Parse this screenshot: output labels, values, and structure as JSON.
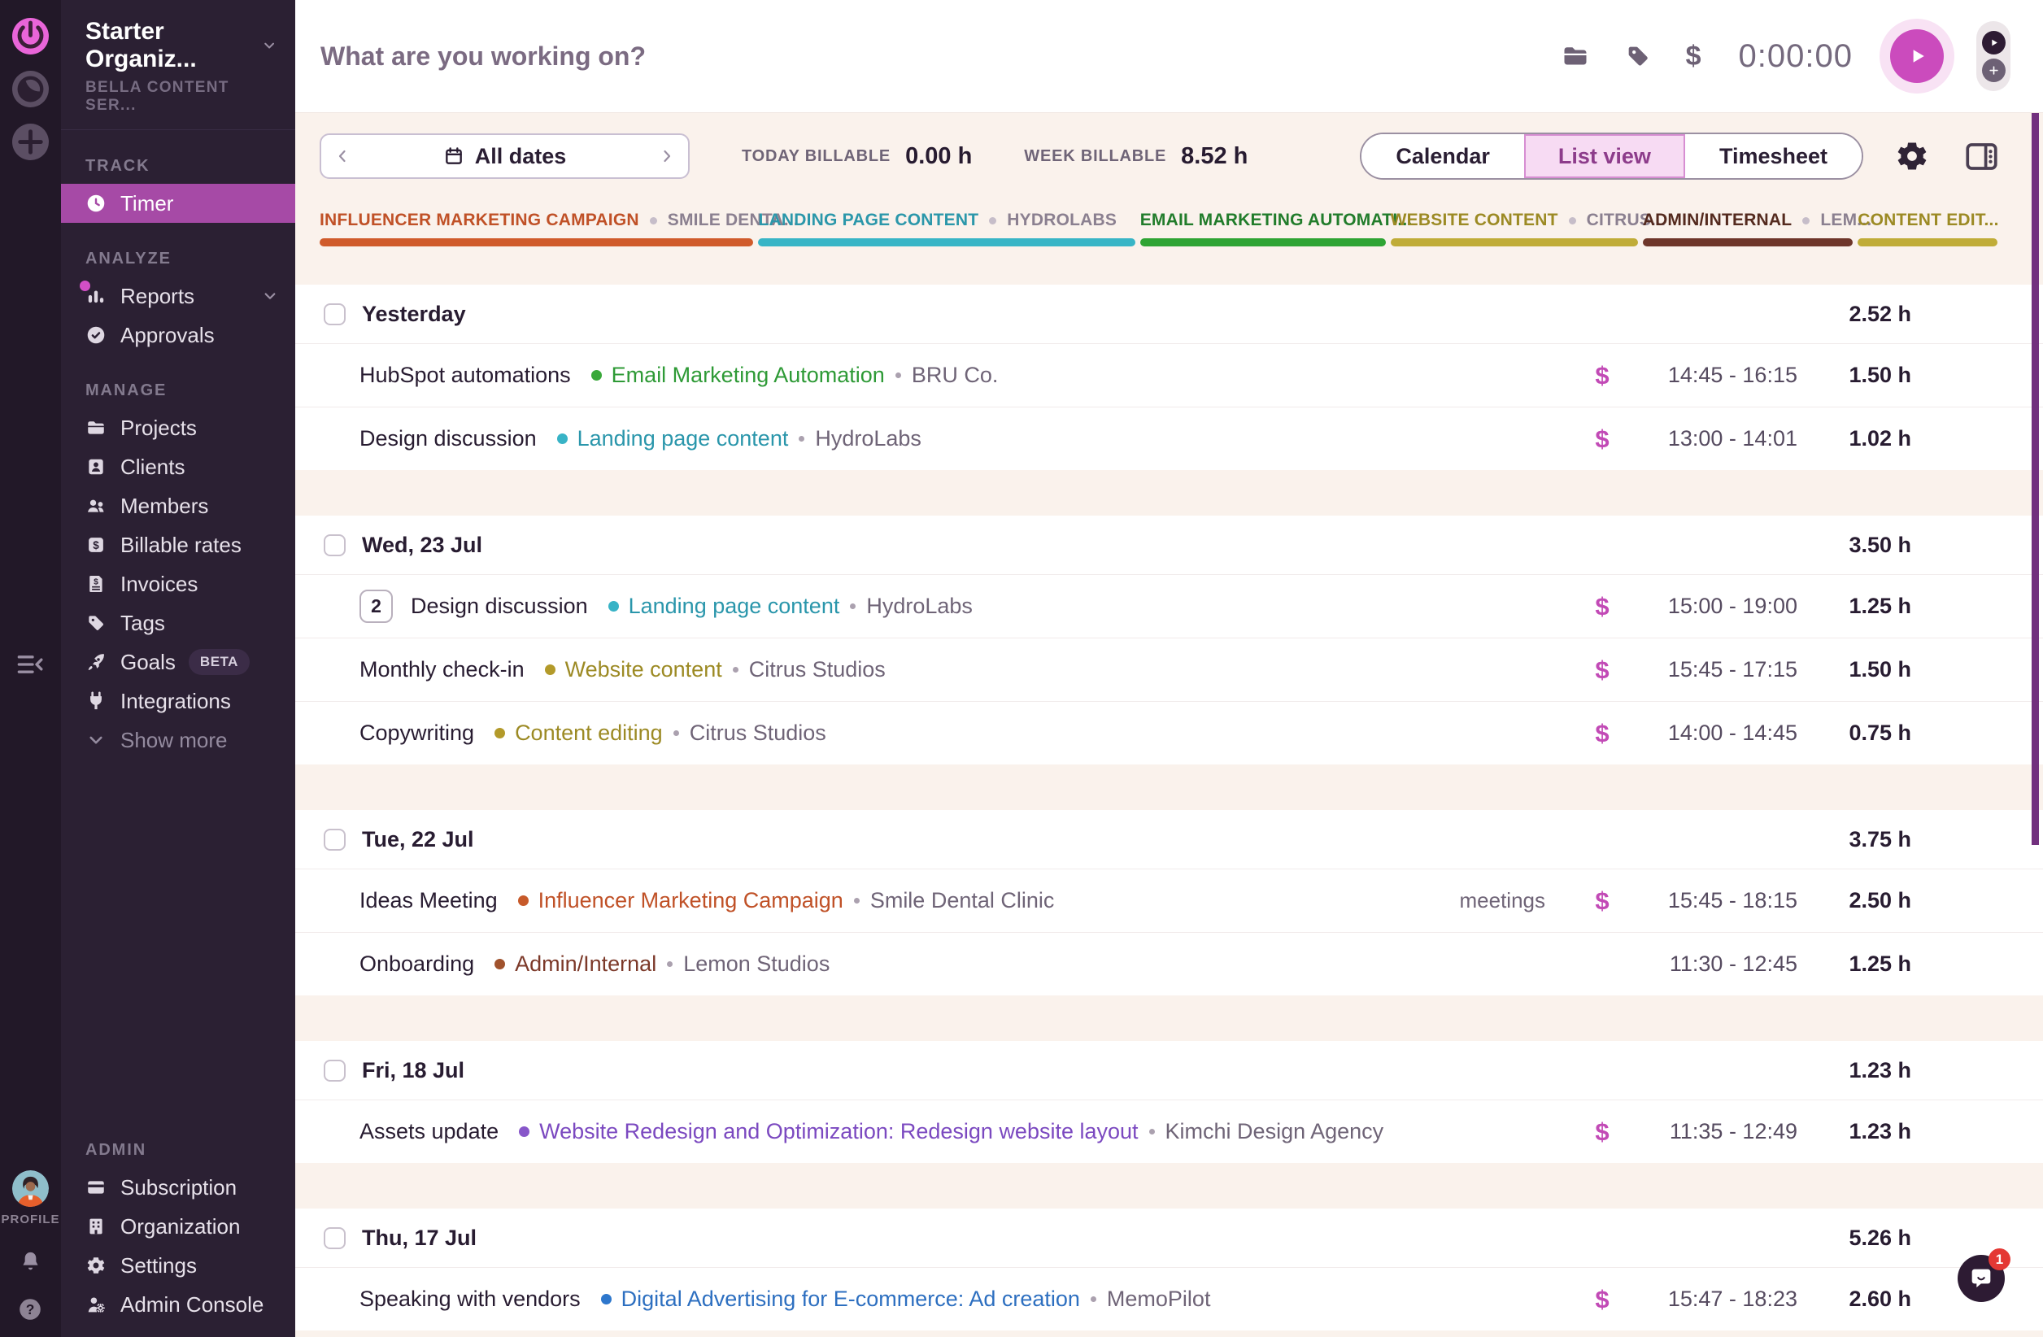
{
  "rail": {
    "profile_label": "PROFILE",
    "icons": {
      "logo": "power",
      "workspace_switcher": "crescent-clock",
      "add_workspace": "plus",
      "collapse_sidebar": "hamburger-left-chevron",
      "notifications": "bell",
      "help": "question-mark"
    }
  },
  "sidebar": {
    "org_name": "Starter Organiz...",
    "org_subtitle": "BELLA CONTENT SER...",
    "sections": [
      {
        "label": "TRACK",
        "items": [
          {
            "label": "Timer",
            "icon": "timer",
            "active": true
          }
        ]
      },
      {
        "label": "ANALYZE",
        "items": [
          {
            "label": "Reports",
            "icon": "reports",
            "chevron": true,
            "notification": true
          },
          {
            "label": "Approvals",
            "icon": "approvals"
          }
        ]
      },
      {
        "label": "MANAGE",
        "items": [
          {
            "label": "Projects",
            "icon": "projects"
          },
          {
            "label": "Clients",
            "icon": "clients"
          },
          {
            "label": "Members",
            "icon": "members"
          },
          {
            "label": "Billable rates",
            "icon": "billable"
          },
          {
            "label": "Invoices",
            "icon": "invoices"
          },
          {
            "label": "Tags",
            "icon": "tags"
          },
          {
            "label": "Goals",
            "icon": "goals",
            "badge": "BETA"
          },
          {
            "label": "Integrations",
            "icon": "integrations"
          },
          {
            "label": "Show more",
            "icon": "chevron-down",
            "muted": true
          }
        ]
      },
      {
        "label": "ADMIN",
        "items": [
          {
            "label": "Subscription",
            "icon": "subscription"
          },
          {
            "label": "Organization",
            "icon": "organization"
          },
          {
            "label": "Settings",
            "icon": "settings"
          },
          {
            "label": "Admin Console",
            "icon": "admin-console"
          }
        ]
      }
    ]
  },
  "topbar": {
    "placeholder": "What are you working on?",
    "timer_value": "0:00:00"
  },
  "toolbar": {
    "date_range": "All dates",
    "today_label": "TODAY BILLABLE",
    "today_value": "0.00 h",
    "week_label": "WEEK BILLABLE",
    "week_value": "8.52 h",
    "views": [
      {
        "label": "Calendar",
        "active": false
      },
      {
        "label": "List view",
        "active": true
      },
      {
        "label": "Timesheet",
        "active": false
      }
    ]
  },
  "project_bar": {
    "segments": [
      {
        "project": "INFLUENCER MARKETING CAMPAIGN",
        "client": "SMILE DENTA...",
        "color": "#c05127",
        "bar": "#d05b2b",
        "width": 26.1
      },
      {
        "project": "LANDING PAGE CONTENT",
        "client": "HYDROLABS",
        "color": "#2b97aa",
        "bar": "#38b5c6",
        "width": 22.7
      },
      {
        "project": "EMAIL MARKETING AUTOMATI...",
        "client": "",
        "color": "#217c2b",
        "bar": "#2fa434",
        "width": 14.9
      },
      {
        "project": "WEBSITE CONTENT",
        "client": "CITRUS...",
        "color": "#9c8a24",
        "bar": "#c0ac38",
        "width": 15.0
      },
      {
        "project": "ADMIN/INTERNAL",
        "client": "LEM...",
        "color": "#542a1e",
        "bar": "#6e362a",
        "width": 12.8
      },
      {
        "project": "CONTENT EDIT...",
        "client": "",
        "color": "#9c8a24",
        "bar": "#c0ac38",
        "width": 8.3
      }
    ]
  },
  "groups": [
    {
      "title": "Yesterday",
      "total": "2.52 h",
      "entries": [
        {
          "description": "HubSpot automations",
          "project": "Email Marketing Automation",
          "project_color": "#2e9a36",
          "dot": "#39a83a",
          "client": "BRU Co.",
          "billable": true,
          "time": "14:45 - 16:15",
          "duration": "1.50 h"
        },
        {
          "description": "Design discussion",
          "project": "Landing page content",
          "project_color": "#2a96ab",
          "dot": "#38b3c6",
          "client": "HydroLabs",
          "billable": true,
          "time": "13:00 - 14:01",
          "duration": "1.02 h"
        }
      ]
    },
    {
      "title": "Wed, 23 Jul",
      "total": "3.50 h",
      "entries": [
        {
          "count": "2",
          "description": "Design discussion",
          "project": "Landing page content",
          "project_color": "#2a96ab",
          "dot": "#38b3c6",
          "client": "HydroLabs",
          "billable": true,
          "time": "15:00 - 19:00",
          "duration": "1.25 h"
        },
        {
          "description": "Monthly check-in",
          "project": "Website content",
          "project_color": "#9c8a24",
          "dot": "#b39a2a",
          "client": "Citrus Studios",
          "billable": true,
          "time": "15:45 - 17:15",
          "duration": "1.50 h"
        },
        {
          "description": "Copywriting",
          "project": "Content editing",
          "project_color": "#9c8a24",
          "dot": "#b39a2a",
          "client": "Citrus Studios",
          "billable": true,
          "time": "14:00 - 14:45",
          "duration": "0.75 h"
        }
      ]
    },
    {
      "title": "Tue, 22 Jul",
      "total": "3.75 h",
      "entries": [
        {
          "description": "Ideas Meeting",
          "project": "Influencer Marketing Campaign",
          "project_color": "#c05127",
          "dot": "#c75a2a",
          "client": "Smile Dental Clinic",
          "tags": "meetings",
          "billable": true,
          "time": "15:45 - 18:15",
          "duration": "2.50 h"
        },
        {
          "description": "Onboarding",
          "project": "Admin/Internal",
          "project_color": "#7c3929",
          "dot": "#a0522d",
          "client": "Lemon Studios",
          "billable": false,
          "time": "11:30 - 12:45",
          "duration": "1.25 h"
        }
      ]
    },
    {
      "title": "Fri, 18 Jul",
      "total": "1.23 h",
      "entries": [
        {
          "description": "Assets update",
          "project": "Website Redesign and Optimization: Redesign website layout",
          "project_color": "#7b49c0",
          "dot": "#8756c9",
          "client": "Kimchi Design Agency",
          "billable": true,
          "time": "11:35 - 12:49",
          "duration": "1.23 h"
        }
      ]
    },
    {
      "title": "Thu, 17 Jul",
      "total": "5.26 h",
      "entries": [
        {
          "description": "Speaking with vendors",
          "project": "Digital Advertising for E-commerce: Ad creation",
          "project_color": "#2d6fc0",
          "dot": "#2e77cc",
          "client": "MemoPilot",
          "billable": true,
          "time": "15:47 - 18:23",
          "duration": "2.60 h"
        }
      ]
    }
  ],
  "chat": {
    "badge": "1",
    "icon": "speech-bubble"
  },
  "colors": {
    "accent_magenta": "#cb4bbd",
    "sidebar_bg": "#2b2033",
    "rail_bg": "#221828",
    "active_nav": "#a64aa6",
    "page_bg": "#faf2ec",
    "billable_dollar": "#c24ab6",
    "scrollbar": "#72307e"
  }
}
